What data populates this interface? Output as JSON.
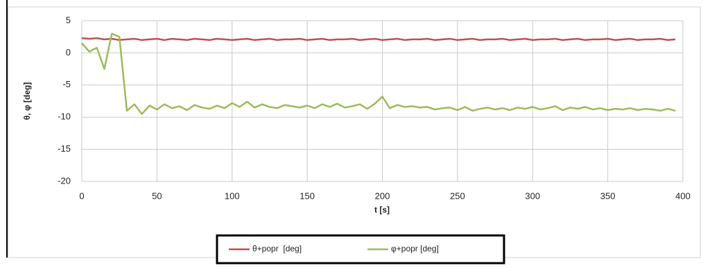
{
  "chart_data": {
    "type": "line",
    "xlabel": "t [s]",
    "ylabel": "θ, φ [deg]",
    "x": [
      0,
      5,
      10,
      15,
      20,
      25,
      30,
      35,
      40,
      45,
      50,
      55,
      60,
      65,
      70,
      75,
      80,
      85,
      90,
      95,
      100,
      105,
      110,
      115,
      120,
      125,
      130,
      135,
      140,
      145,
      150,
      155,
      160,
      165,
      170,
      175,
      180,
      185,
      190,
      195,
      200,
      205,
      210,
      215,
      220,
      225,
      230,
      235,
      240,
      245,
      250,
      255,
      260,
      265,
      270,
      275,
      280,
      285,
      290,
      295,
      300,
      305,
      310,
      315,
      320,
      325,
      330,
      335,
      340,
      345,
      350,
      355,
      360,
      365,
      370,
      375,
      380,
      385,
      390,
      395
    ],
    "series": [
      {
        "name": "θ+popr  [deg]",
        "color": "#c0504d",
        "values": [
          2.3,
          2.2,
          2.3,
          2.1,
          2.2,
          2.0,
          2.1,
          2.2,
          2.0,
          2.1,
          2.2,
          2.0,
          2.2,
          2.1,
          2.0,
          2.2,
          2.1,
          2.0,
          2.2,
          2.1,
          2.0,
          2.1,
          2.2,
          2.0,
          2.1,
          2.2,
          2.0,
          2.1,
          2.1,
          2.2,
          2.0,
          2.1,
          2.2,
          2.0,
          2.1,
          2.1,
          2.2,
          2.0,
          2.1,
          2.2,
          2.0,
          2.1,
          2.2,
          2.0,
          2.1,
          2.1,
          2.2,
          2.0,
          2.1,
          2.2,
          2.0,
          2.1,
          2.2,
          2.0,
          2.1,
          2.1,
          2.2,
          2.0,
          2.1,
          2.2,
          2.0,
          2.1,
          2.1,
          2.2,
          2.0,
          2.1,
          2.2,
          2.0,
          2.1,
          2.1,
          2.2,
          2.0,
          2.1,
          2.2,
          2.0,
          2.1,
          2.1,
          2.2,
          2.0,
          2.1
        ]
      },
      {
        "name": "φ+popr [deg]",
        "color": "#9bbb59",
        "values": [
          1.5,
          0.2,
          0.8,
          -2.5,
          3.0,
          2.5,
          -9.0,
          -8.0,
          -9.5,
          -8.2,
          -8.8,
          -8.0,
          -8.6,
          -8.3,
          -8.9,
          -8.1,
          -8.5,
          -8.7,
          -8.2,
          -8.6,
          -7.8,
          -8.4,
          -7.6,
          -8.5,
          -8.0,
          -8.4,
          -8.6,
          -8.1,
          -8.3,
          -8.5,
          -8.2,
          -8.6,
          -8.0,
          -8.4,
          -7.9,
          -8.5,
          -8.3,
          -8.0,
          -8.7,
          -7.9,
          -6.8,
          -8.6,
          -8.1,
          -8.4,
          -8.3,
          -8.5,
          -8.4,
          -8.8,
          -8.6,
          -8.5,
          -8.9,
          -8.4,
          -9.0,
          -8.7,
          -8.5,
          -8.8,
          -8.6,
          -8.9,
          -8.5,
          -8.7,
          -8.4,
          -8.8,
          -8.6,
          -8.3,
          -8.9,
          -8.5,
          -8.7,
          -8.4,
          -8.8,
          -8.6,
          -8.9,
          -8.7,
          -8.8,
          -8.6,
          -8.9,
          -8.7,
          -8.8,
          -9.0,
          -8.7,
          -9.0
        ]
      }
    ],
    "xlim": [
      0,
      400
    ],
    "xticks": [
      0,
      50,
      100,
      150,
      200,
      250,
      300,
      350,
      400
    ],
    "ylim": [
      -20,
      5
    ],
    "yticks": [
      5,
      0,
      -5,
      -10,
      -15,
      -20
    ],
    "grid": true,
    "legend": "bottom"
  }
}
